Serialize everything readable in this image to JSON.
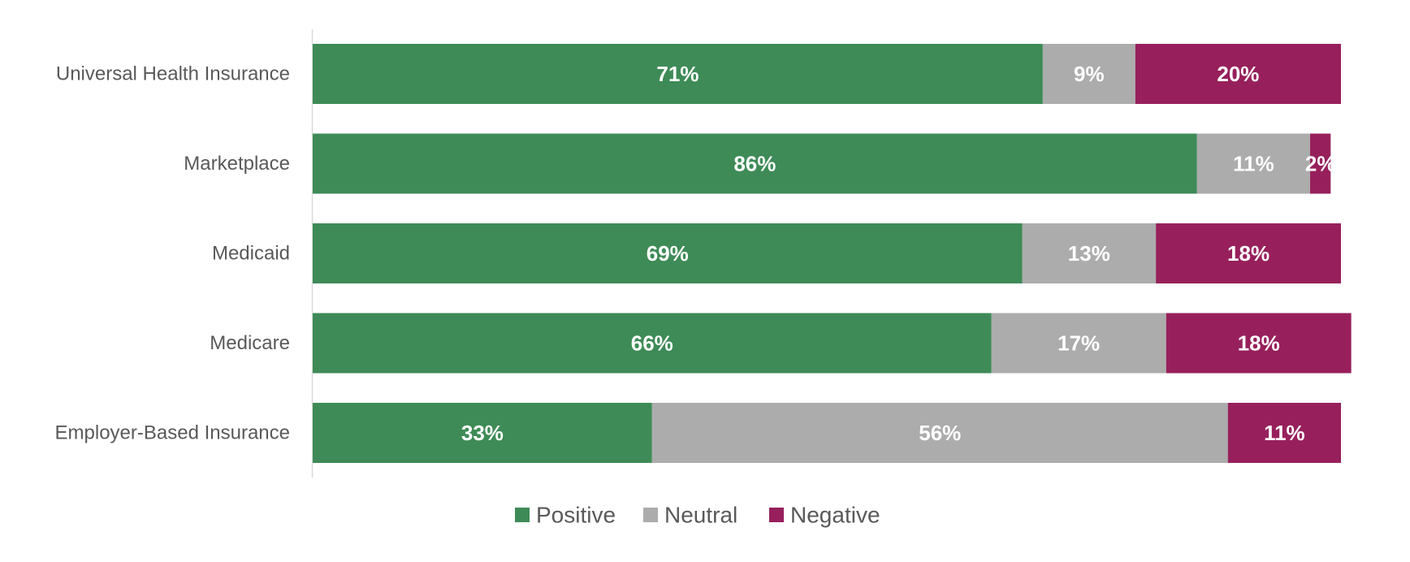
{
  "chart_data": {
    "type": "bar",
    "orientation": "horizontal",
    "stacked": "100%",
    "categories": [
      "Universal Health Insurance",
      "Marketplace",
      "Medicaid",
      "Medicare",
      "Employer-Based Insurance"
    ],
    "series": [
      {
        "name": "Positive",
        "values": [
          71,
          86,
          69,
          66,
          33
        ],
        "labels": [
          "71%",
          "86%",
          "69%",
          "66%",
          "33%"
        ],
        "color": "#3e8b57"
      },
      {
        "name": "Neutral",
        "values": [
          9,
          11,
          13,
          17,
          56
        ],
        "labels": [
          "9%",
          "11%",
          "13%",
          "17%",
          "56%"
        ],
        "color": "#acacac"
      },
      {
        "name": "Negative",
        "values": [
          20,
          2,
          18,
          18,
          11
        ],
        "labels": [
          "20%",
          "2%",
          "18%",
          "18%",
          "11%"
        ],
        "color": "#97205c"
      }
    ],
    "xlim": [
      0,
      100
    ],
    "grid": false,
    "legend": "bottom",
    "title": "",
    "xlabel": "",
    "ylabel": ""
  }
}
